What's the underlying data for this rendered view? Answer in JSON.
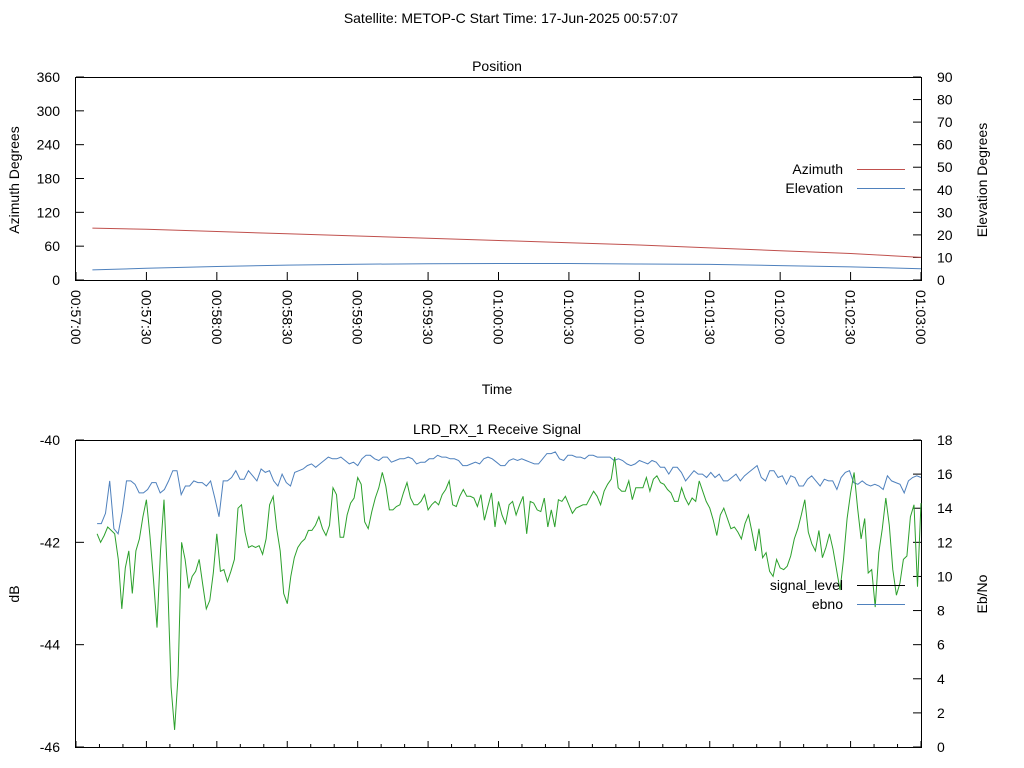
{
  "figure_title": "Satellite: METOP-C    Start Time: 17-Jun-2025 00:57:07",
  "colors": {
    "azimuth": "#c0504d",
    "elevation": "#4f81bd",
    "signal_level": "#000000",
    "ebno": "#4f81bd",
    "ebno_trace_b": "#2ca02c"
  },
  "chart_data": [
    {
      "type": "line",
      "title": "Position",
      "xlabel": "Time",
      "ylabel": "Azimuth Degrees",
      "y2label": "Elevation Degrees",
      "ylim": [
        0,
        360
      ],
      "y2lim": [
        0,
        90
      ],
      "xlim": [
        "00:57:00",
        "01:03:00"
      ],
      "y_ticks": [
        "0",
        "60",
        "120",
        "180",
        "240",
        "300",
        "360"
      ],
      "y2_ticks": [
        "0",
        "10",
        "20",
        "30",
        "40",
        "50",
        "60",
        "70",
        "80",
        "90"
      ],
      "x_ticks": [
        "00:57:00",
        "00:57:30",
        "00:58:00",
        "00:58:30",
        "00:59:00",
        "00:59:30",
        "01:00:00",
        "01:00:30",
        "01:01:00",
        "01:01:30",
        "01:02:00",
        "01:02:30",
        "01:03:00"
      ],
      "legend_position": "right",
      "series": [
        {
          "name": "Azimuth",
          "axis": "left",
          "x": [
            "00:57:07",
            "00:57:30",
            "00:58:00",
            "00:58:30",
            "00:59:00",
            "00:59:30",
            "01:00:00",
            "01:00:30",
            "01:01:00",
            "01:01:30",
            "01:02:00",
            "01:02:30",
            "01:03:00"
          ],
          "values": [
            92,
            90,
            86,
            82,
            78,
            74,
            70,
            66,
            62,
            57,
            52,
            47,
            40
          ]
        },
        {
          "name": "Elevation",
          "axis": "right",
          "x": [
            "00:57:07",
            "00:57:30",
            "00:58:00",
            "00:58:30",
            "00:59:00",
            "00:59:30",
            "01:00:00",
            "01:00:30",
            "01:01:00",
            "01:01:30",
            "01:02:00",
            "01:02:30",
            "01:03:00"
          ],
          "values": [
            4.5,
            5.2,
            6.0,
            6.6,
            7.0,
            7.2,
            7.3,
            7.3,
            7.1,
            6.9,
            6.4,
            5.8,
            5.0
          ]
        }
      ]
    },
    {
      "type": "line",
      "title": "LRD_RX_1 Receive Signal",
      "xlabel": "",
      "ylabel": "dB",
      "y2label": "Eb/No",
      "ylim": [
        -46,
        -40
      ],
      "y2lim": [
        0,
        18
      ],
      "y_ticks": [
        "-40",
        "-42",
        "-44",
        "-46"
      ],
      "y2_ticks": [
        "0",
        "2",
        "4",
        "6",
        "8",
        "10",
        "12",
        "14",
        "16",
        "18"
      ],
      "xlim": [
        "00:57:00",
        "01:03:00"
      ],
      "minor_x_ticks": 36,
      "legend_position": "right",
      "series": [
        {
          "name": "signal_level",
          "axis": "left",
          "values": []
        },
        {
          "name": "ebno",
          "axis": "right",
          "start": "00:57:09",
          "end": "01:03:00",
          "values": [
            13.1,
            13.1,
            13.7,
            15.6,
            12.8,
            12.5,
            13.8,
            15.6,
            15.6,
            15.4,
            14.9,
            14.9,
            15.1,
            15.5,
            15.5,
            14.9,
            15.1,
            15.6,
            16.2,
            16.2,
            14.8,
            15.3,
            15.3,
            15.6,
            15.5,
            15.5,
            15.3,
            15.6,
            14.6,
            13.5,
            15.6,
            15.6,
            15.8,
            16.2,
            15.7,
            15.7,
            16.2,
            15.9,
            15.6,
            16.3,
            16.1,
            16.2,
            15.6,
            15.3,
            16.0,
            15.5,
            15.3,
            16.1,
            16.2,
            16.3,
            16.5,
            16.6,
            16.4,
            16.6,
            16.8,
            17.0,
            16.9,
            16.9,
            17.0,
            16.8,
            16.6,
            16.7,
            16.5,
            16.9,
            17.1,
            17.1,
            16.9,
            16.8,
            17.0,
            17.0,
            16.7,
            16.8,
            16.9,
            16.9,
            17.0,
            16.9,
            16.6,
            16.7,
            16.7,
            16.9,
            16.9,
            17.1,
            17.0,
            17.0,
            16.9,
            16.9,
            16.8,
            16.5,
            16.5,
            16.6,
            16.7,
            16.6,
            16.9,
            17.0,
            16.9,
            16.7,
            16.5,
            16.5,
            16.8,
            16.9,
            16.8,
            16.9,
            16.8,
            16.7,
            16.6,
            16.6,
            16.9,
            17.2,
            17.2,
            17.3,
            16.9,
            16.8,
            17.1,
            17.1,
            17.0,
            17.0,
            16.9,
            17.1,
            17.1,
            17.0,
            17.0,
            17.0,
            17.0,
            16.8,
            16.9,
            16.8,
            16.6,
            16.5,
            16.6,
            16.8,
            16.7,
            16.6,
            16.8,
            16.7,
            16.4,
            16.4,
            16.0,
            16.4,
            16.4,
            16.1,
            15.6,
            15.9,
            16.2,
            16.0,
            16.0,
            15.8,
            16.1,
            15.8,
            16.0,
            15.6,
            15.6,
            15.8,
            16.0,
            15.6,
            15.9,
            16.1,
            16.3,
            16.5,
            15.8,
            15.6,
            16.2,
            16.2,
            15.8,
            15.9,
            15.4,
            15.9,
            15.8,
            15.3,
            15.3,
            15.7,
            15.9,
            15.6,
            15.3,
            15.7,
            15.6,
            15.6,
            15.1,
            15.8,
            16.1,
            16.2,
            15.5,
            15.4,
            15.6,
            15.4,
            15.3,
            15.4,
            15.3,
            15.1,
            15.9,
            15.6,
            15.5,
            15.4,
            14.9,
            15.6,
            15.8,
            15.9,
            15.8
          ]
        },
        {
          "name": "",
          "axis": "right",
          "start": "00:57:09",
          "end": "01:03:00",
          "values": [
            12.5,
            12.0,
            12.4,
            12.9,
            12.7,
            12.5,
            11.0,
            8.1,
            10.5,
            11.5,
            9.0,
            11.5,
            12.2,
            13.5,
            14.5,
            12.4,
            9.8,
            7.0,
            11.5,
            14.5,
            10.0,
            3.5,
            1.0,
            4.2,
            12.0,
            11.0,
            9.3,
            10.0,
            10.3,
            11.0,
            9.5,
            8.1,
            8.6,
            10.2,
            12.5,
            10.3,
            10.4,
            9.7,
            10.3,
            11.0,
            14.0,
            14.2,
            12.6,
            11.7,
            11.8,
            11.7,
            11.8,
            11.3,
            12.2,
            14.2,
            14.7,
            12.8,
            11.5,
            9.0,
            8.4,
            10.0,
            11.1,
            11.7,
            12.0,
            12.2,
            12.7,
            12.7,
            13.0,
            13.5,
            12.8,
            12.4,
            13.0,
            15.2,
            14.8,
            12.3,
            12.3,
            13.6,
            14.3,
            14.6,
            15.8,
            15.4,
            13.2,
            12.8,
            13.8,
            14.6,
            15.2,
            16.1,
            15.3,
            13.9,
            13.9,
            14.1,
            14.2,
            14.9,
            15.5,
            14.6,
            14.2,
            14.2,
            14.4,
            14.8,
            13.9,
            14.2,
            14.4,
            14.2,
            14.8,
            15.1,
            15.6,
            14.2,
            14.1,
            14.7,
            15.1,
            14.7,
            14.7,
            14.6,
            14.1,
            14.8,
            13.3,
            14.1,
            14.9,
            12.9,
            14.4,
            13.6,
            13.1,
            14.2,
            14.4,
            13.6,
            14.2,
            14.7,
            12.5,
            14.4,
            14.3,
            13.9,
            13.8,
            14.6,
            12.9,
            13.9,
            12.9,
            14.5,
            14.4,
            14.7,
            14.2,
            13.7,
            14.0,
            14.1,
            14.2,
            14.2,
            14.6,
            15.0,
            14.7,
            14.2,
            15.0,
            15.4,
            15.7,
            17.0,
            15.2,
            15.0,
            15.0,
            15.6,
            14.5,
            15.2,
            15.2,
            15.2,
            15.8,
            15.0,
            15.7,
            15.9,
            15.5,
            15.4,
            15.1,
            14.9,
            14.4,
            14.4,
            15.2,
            14.6,
            14.2,
            14.6,
            14.4,
            15.6,
            15.0,
            14.4,
            14.0,
            13.3,
            12.4,
            13.6,
            14.0,
            13.4,
            12.8,
            12.9,
            12.6,
            12.2,
            13.1,
            13.6,
            12.6,
            11.5,
            12.8,
            11.1,
            11.4,
            10.3,
            10.0,
            11.0,
            10.5,
            10.4,
            10.6,
            11.2,
            12.2,
            12.8,
            13.6,
            14.5,
            12.6,
            11.9,
            11.5,
            12.7,
            11.1,
            11.7,
            12.5,
            11.6,
            10.4,
            9.2,
            11.0,
            13.4,
            14.9,
            16.1,
            14.0,
            12.2,
            13.4,
            10.2,
            10.4,
            8.2,
            11.4,
            12.8,
            14.6,
            13.0,
            10.4,
            8.9,
            9.6,
            11.0,
            11.2,
            13.5,
            14.2,
            9.4,
            14.3
          ]
        }
      ]
    }
  ]
}
